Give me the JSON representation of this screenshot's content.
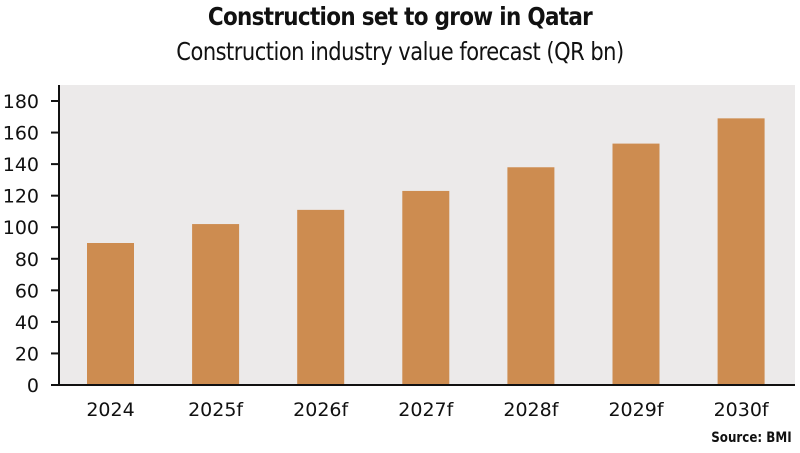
{
  "chart_data": {
    "type": "bar",
    "title": "Construction set to grow in Qatar",
    "subtitle": "Construction industry value forecast (QR bn)",
    "categories": [
      "2024",
      "2025f",
      "2026f",
      "2027f",
      "2028f",
      "2029f",
      "2030f"
    ],
    "values": [
      90,
      102,
      111,
      123,
      138,
      153,
      169
    ],
    "xlabel": "",
    "ylabel": "",
    "ylim": [
      0,
      180
    ],
    "yticks": [
      0,
      20,
      40,
      60,
      80,
      100,
      120,
      140,
      160,
      180
    ],
    "grid": false,
    "legend": "none",
    "source": "Source: BMI",
    "colors": {
      "bar": "#CD8C50",
      "plot_background": "#ECEAEA",
      "axis": "#111111"
    }
  }
}
